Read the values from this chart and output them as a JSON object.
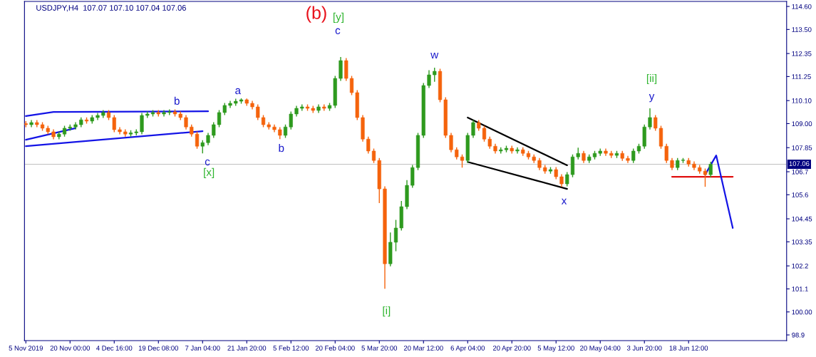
{
  "chart_data": {
    "type": "candlestick",
    "title": "USDJPY,H4  107.07 107.10 107.04 107.06",
    "categories": [
      "5 Nov 2019",
      null,
      null,
      null,
      null,
      null,
      null,
      null,
      "20 Nov 00:00",
      null,
      null,
      null,
      null,
      null,
      null,
      null,
      "4 Dec 16:00",
      null,
      null,
      null,
      null,
      null,
      null,
      null,
      "19 Dec 08:00",
      null,
      null,
      null,
      null,
      null,
      null,
      null,
      "7 Jan 04:00",
      null,
      null,
      null,
      null,
      null,
      null,
      null,
      "21 Jan 20:00",
      null,
      null,
      null,
      null,
      null,
      null,
      null,
      "5 Feb 12:00",
      null,
      null,
      null,
      null,
      null,
      null,
      null,
      "20 Feb 04:00",
      null,
      null,
      null,
      null,
      null,
      null,
      null,
      "5 Mar 20:00",
      null,
      null,
      null,
      null,
      null,
      null,
      null,
      "20 Mar 12:00",
      null,
      null,
      null,
      null,
      null,
      null,
      null,
      "6 Apr 04:00",
      null,
      null,
      null,
      null,
      null,
      null,
      null,
      "20 Apr 20:00",
      null,
      null,
      null,
      null,
      null,
      null,
      null,
      "5 May 12:00",
      null,
      null,
      null,
      null,
      null,
      null,
      null,
      "20 May 04:00",
      null,
      null,
      null,
      null,
      null,
      null,
      null,
      "3 Jun 20:00",
      null,
      null,
      null,
      null,
      null,
      null,
      null,
      "18 Jun 12:00",
      null,
      null,
      null,
      null,
      null,
      null,
      null,
      null,
      null,
      null,
      null,
      null,
      null,
      null,
      null,
      null,
      null
    ],
    "ohlc": [
      [
        109.0,
        109.12,
        108.83,
        108.95
      ],
      [
        108.95,
        109.17,
        108.83,
        109.05
      ],
      [
        109.05,
        109.17,
        108.83,
        108.95
      ],
      [
        108.95,
        109.07,
        108.66,
        108.78
      ],
      [
        108.78,
        108.9,
        108.49,
        108.61
      ],
      [
        108.61,
        108.73,
        108.25,
        108.37
      ],
      [
        108.37,
        108.62,
        108.25,
        108.5
      ],
      [
        108.5,
        108.9,
        108.38,
        108.78
      ],
      [
        108.78,
        108.96,
        108.66,
        108.84
      ],
      [
        108.84,
        109.07,
        108.72,
        108.95
      ],
      [
        108.95,
        109.3,
        108.83,
        109.18
      ],
      [
        109.18,
        109.3,
        109.0,
        109.12
      ],
      [
        109.12,
        109.41,
        109.0,
        109.29
      ],
      [
        109.29,
        109.51,
        109.17,
        109.39
      ],
      [
        109.39,
        109.65,
        109.27,
        109.53
      ],
      [
        109.53,
        109.65,
        109.17,
        109.29
      ],
      [
        109.29,
        109.41,
        108.59,
        108.71
      ],
      [
        108.71,
        108.83,
        108.49,
        108.61
      ],
      [
        108.61,
        108.73,
        108.38,
        108.5
      ],
      [
        108.5,
        108.68,
        108.38,
        108.56
      ],
      [
        108.56,
        108.73,
        108.44,
        108.61
      ],
      [
        108.61,
        109.51,
        108.49,
        109.39
      ],
      [
        109.39,
        109.58,
        109.27,
        109.46
      ],
      [
        109.46,
        109.65,
        109.34,
        109.53
      ],
      [
        109.53,
        109.65,
        109.34,
        109.46
      ],
      [
        109.46,
        109.65,
        109.34,
        109.53
      ],
      [
        109.53,
        109.68,
        109.41,
        109.56
      ],
      [
        109.56,
        109.68,
        109.34,
        109.46
      ],
      [
        109.46,
        109.58,
        109.17,
        109.29
      ],
      [
        109.29,
        109.41,
        108.72,
        108.84
      ],
      [
        108.84,
        108.96,
        108.38,
        108.5
      ],
      [
        108.5,
        108.62,
        107.8,
        107.92
      ],
      [
        107.92,
        108.21,
        107.58,
        108.09
      ],
      [
        108.09,
        108.56,
        107.97,
        108.44
      ],
      [
        108.44,
        109.07,
        108.32,
        108.95
      ],
      [
        108.95,
        109.65,
        108.83,
        109.53
      ],
      [
        109.53,
        109.99,
        109.41,
        109.87
      ],
      [
        109.87,
        110.09,
        109.75,
        109.97
      ],
      [
        109.97,
        110.19,
        109.85,
        110.07
      ],
      [
        110.07,
        110.21,
        109.95,
        110.14
      ],
      [
        110.14,
        110.2,
        109.85,
        109.97
      ],
      [
        109.97,
        110.09,
        109.68,
        109.8
      ],
      [
        109.8,
        109.92,
        109.17,
        109.29
      ],
      [
        109.29,
        109.41,
        108.83,
        108.95
      ],
      [
        108.95,
        109.07,
        108.72,
        108.84
      ],
      [
        108.84,
        108.96,
        108.59,
        108.71
      ],
      [
        108.71,
        108.83,
        108.26,
        108.44
      ],
      [
        108.44,
        108.96,
        108.32,
        108.84
      ],
      [
        108.84,
        109.58,
        108.72,
        109.46
      ],
      [
        109.46,
        109.85,
        109.34,
        109.73
      ],
      [
        109.73,
        109.92,
        109.61,
        109.8
      ],
      [
        109.8,
        109.92,
        109.61,
        109.73
      ],
      [
        109.73,
        109.85,
        109.51,
        109.63
      ],
      [
        109.63,
        109.92,
        109.51,
        109.8
      ],
      [
        109.8,
        109.92,
        109.61,
        109.73
      ],
      [
        109.73,
        109.99,
        109.61,
        109.87
      ],
      [
        109.87,
        111.28,
        109.75,
        111.16
      ],
      [
        111.16,
        112.18,
        111.04,
        112.01
      ],
      [
        112.01,
        112.13,
        111.04,
        111.16
      ],
      [
        111.16,
        111.28,
        110.36,
        110.48
      ],
      [
        110.48,
        110.6,
        109.17,
        109.29
      ],
      [
        109.29,
        109.41,
        108.14,
        108.26
      ],
      [
        108.26,
        108.38,
        107.57,
        107.69
      ],
      [
        107.69,
        107.81,
        107.12,
        107.24
      ],
      [
        107.24,
        107.36,
        105.2,
        105.88
      ],
      [
        105.88,
        106.0,
        101.11,
        102.3
      ],
      [
        102.3,
        103.8,
        102.18,
        103.33
      ],
      [
        103.33,
        104.4,
        102.9,
        104.01
      ],
      [
        104.01,
        105.3,
        103.89,
        105.03
      ],
      [
        105.03,
        106.3,
        104.91,
        106.05
      ],
      [
        106.05,
        107.02,
        105.93,
        106.9
      ],
      [
        106.9,
        108.56,
        106.78,
        108.44
      ],
      [
        108.44,
        110.94,
        108.32,
        110.82
      ],
      [
        110.82,
        111.55,
        110.7,
        111.33
      ],
      [
        111.33,
        111.67,
        111.0,
        111.5
      ],
      [
        111.5,
        111.62,
        110.02,
        110.14
      ],
      [
        110.14,
        110.26,
        108.32,
        108.44
      ],
      [
        108.44,
        108.56,
        107.63,
        107.75
      ],
      [
        107.75,
        107.87,
        107.29,
        107.41
      ],
      [
        107.41,
        107.53,
        106.9,
        107.24
      ],
      [
        107.24,
        108.56,
        107.12,
        108.44
      ],
      [
        108.44,
        109.17,
        108.32,
        109.05
      ],
      [
        109.05,
        109.17,
        108.66,
        108.78
      ],
      [
        108.78,
        108.9,
        108.14,
        108.26
      ],
      [
        108.26,
        108.38,
        107.8,
        107.92
      ],
      [
        107.92,
        108.04,
        107.57,
        107.69
      ],
      [
        107.69,
        107.87,
        107.57,
        107.75
      ],
      [
        107.75,
        107.94,
        107.63,
        107.82
      ],
      [
        107.82,
        107.94,
        107.57,
        107.69
      ],
      [
        107.69,
        107.87,
        107.57,
        107.75
      ],
      [
        107.75,
        107.87,
        107.46,
        107.58
      ],
      [
        107.58,
        107.7,
        107.29,
        107.41
      ],
      [
        107.41,
        107.53,
        107.12,
        107.24
      ],
      [
        107.24,
        107.36,
        106.78,
        106.9
      ],
      [
        106.9,
        107.02,
        106.61,
        106.73
      ],
      [
        106.73,
        106.92,
        106.61,
        106.8
      ],
      [
        106.8,
        106.92,
        106.34,
        106.46
      ],
      [
        106.46,
        106.58,
        105.98,
        106.12
      ],
      [
        106.12,
        106.68,
        106.0,
        106.56
      ],
      [
        106.56,
        107.53,
        106.44,
        107.41
      ],
      [
        107.41,
        107.85,
        107.29,
        107.58
      ],
      [
        107.58,
        107.7,
        107.12,
        107.24
      ],
      [
        107.24,
        107.53,
        107.12,
        107.41
      ],
      [
        107.41,
        107.7,
        107.29,
        107.58
      ],
      [
        107.58,
        107.81,
        107.46,
        107.69
      ],
      [
        107.69,
        107.81,
        107.46,
        107.58
      ],
      [
        107.58,
        107.7,
        107.36,
        107.48
      ],
      [
        107.48,
        107.7,
        107.36,
        107.58
      ],
      [
        107.58,
        107.7,
        107.22,
        107.34
      ],
      [
        107.34,
        107.46,
        107.12,
        107.24
      ],
      [
        107.24,
        107.81,
        107.12,
        107.69
      ],
      [
        107.69,
        108.04,
        107.57,
        107.92
      ],
      [
        107.92,
        108.96,
        107.8,
        108.84
      ],
      [
        108.84,
        109.73,
        108.72,
        109.29
      ],
      [
        109.29,
        109.41,
        108.66,
        108.78
      ],
      [
        108.78,
        108.9,
        107.8,
        107.92
      ],
      [
        107.92,
        108.04,
        107.12,
        107.24
      ],
      [
        107.24,
        107.36,
        106.78,
        106.9
      ],
      [
        106.9,
        107.36,
        106.78,
        107.24
      ],
      [
        107.24,
        107.36,
        107.12,
        107.24
      ],
      [
        107.24,
        107.36,
        106.95,
        107.07
      ],
      [
        107.07,
        107.19,
        106.78,
        106.9
      ],
      [
        106.9,
        107.02,
        106.61,
        106.73
      ],
      [
        106.73,
        106.85,
        105.98,
        106.56
      ],
      [
        106.56,
        107.18,
        106.44,
        107.06
      ],
      null,
      null,
      null,
      null,
      null,
      null,
      null,
      null,
      null,
      null,
      null,
      null,
      null
    ],
    "colors": [
      "#f5630c",
      "#2e9a1e",
      "#f5630c",
      "#f5630c",
      "#f5630c",
      "#f5630c",
      "#2e9a1e",
      "#2e9a1e",
      "#2e9a1e",
      "#2e9a1e",
      "#2e9a1e",
      "#f5630c",
      "#2e9a1e",
      "#2e9a1e",
      "#2e9a1e",
      "#f5630c",
      "#f5630c",
      "#f5630c",
      "#f5630c",
      "#2e9a1e",
      "#2e9a1e",
      "#2e9a1e",
      "#2e9a1e",
      "#2e9a1e",
      "#f5630c",
      "#2e9a1e",
      "#2e9a1e",
      "#f5630c",
      "#f5630c",
      "#f5630c",
      "#f5630c",
      "#f5630c",
      "#2e9a1e",
      "#2e9a1e",
      "#2e9a1e",
      "#2e9a1e",
      "#2e9a1e",
      "#2e9a1e",
      "#2e9a1e",
      "#2e9a1e",
      "#f5630c",
      "#f5630c",
      "#f5630c",
      "#f5630c",
      "#f5630c",
      "#f5630c",
      "#f5630c",
      "#2e9a1e",
      "#2e9a1e",
      "#2e9a1e",
      "#2e9a1e",
      "#f5630c",
      "#f5630c",
      "#2e9a1e",
      "#f5630c",
      "#2e9a1e",
      "#2e9a1e",
      "#2e9a1e",
      "#f5630c",
      "#f5630c",
      "#f5630c",
      "#f5630c",
      "#f5630c",
      "#f5630c",
      "#f5630c",
      "#f5630c",
      "#2e9a1e",
      "#2e9a1e",
      "#2e9a1e",
      "#2e9a1e",
      "#2e9a1e",
      "#2e9a1e",
      "#2e9a1e",
      "#2e9a1e",
      "#2e9a1e",
      "#f5630c",
      "#f5630c",
      "#f5630c",
      "#f5630c",
      "#f5630c",
      "#2e9a1e",
      "#2e9a1e",
      "#f5630c",
      "#f5630c",
      "#f5630c",
      "#f5630c",
      "#2e9a1e",
      "#2e9a1e",
      "#f5630c",
      "#2e9a1e",
      "#f5630c",
      "#f5630c",
      "#f5630c",
      "#f5630c",
      "#f5630c",
      "#2e9a1e",
      "#f5630c",
      "#f5630c",
      "#2e9a1e",
      "#2e9a1e",
      "#2e9a1e",
      "#f5630c",
      "#2e9a1e",
      "#2e9a1e",
      "#2e9a1e",
      "#f5630c",
      "#f5630c",
      "#2e9a1e",
      "#f5630c",
      "#f5630c",
      "#2e9a1e",
      "#2e9a1e",
      "#2e9a1e",
      "#2e9a1e",
      "#f5630c",
      "#f5630c",
      "#f5630c",
      "#f5630c",
      "#2e9a1e",
      "#2e9a1e",
      "#f5630c",
      "#f5630c",
      "#f5630c",
      "#f5630c",
      "#2e9a1e",
      null,
      null,
      null,
      null,
      null,
      null,
      null,
      null,
      null,
      null,
      null,
      null,
      null
    ],
    "ylim": [
      98.63,
      114.84
    ],
    "yticks": [
      98.9,
      {
        "value": 100.0,
        "label": "100.00"
      },
      101.1,
      102.2,
      103.35,
      104.45,
      105.6,
      106.7,
      107.85,
      {
        "value": 109.0,
        "label": "109.00"
      },
      {
        "value": 110.1,
        "label": "110.10"
      },
      111.25,
      112.35,
      {
        "value": 113.5,
        "label": "113.50"
      },
      {
        "value": 114.6,
        "label": "114.60"
      }
    ],
    "ref_lines": [
      {
        "axis": "y",
        "value": 107.06,
        "label": "107.06",
        "color": "#c0c0c0"
      }
    ],
    "annotations": [
      "b",
      "c",
      "[x]",
      "a",
      "b",
      "(b)",
      "c",
      "[y]",
      "[i]",
      "w",
      "x",
      "[ii]",
      "y"
    ],
    "series": [
      {
        "type": "line",
        "color": "#1414e6",
        "values": [
          109.36,
          null,
          null,
          null,
          null,
          109.56,
          null,
          null,
          null,
          null,
          null,
          null,
          null,
          null,
          null,
          null,
          null,
          null,
          null,
          null,
          null,
          null,
          null,
          null,
          null,
          null,
          null,
          null,
          null,
          null,
          null,
          null,
          null,
          109.59,
          null,
          null,
          null,
          null,
          null,
          null,
          null,
          null,
          null,
          null,
          null,
          null,
          null,
          null,
          null,
          null,
          null,
          null,
          null,
          null,
          null,
          null,
          null,
          null,
          null,
          null,
          null,
          null,
          null,
          null,
          null,
          null,
          null,
          null,
          null,
          null,
          null,
          null,
          null,
          null,
          null,
          null,
          null,
          null,
          null,
          null,
          null,
          null,
          null,
          null,
          null,
          null,
          null,
          null,
          null,
          null,
          null,
          null,
          null,
          null,
          null,
          null,
          null,
          null,
          null,
          null,
          null,
          null,
          null,
          null,
          null,
          null,
          null,
          null,
          null,
          null,
          null,
          null,
          null,
          null,
          null,
          null,
          null,
          null,
          null,
          null,
          null,
          null,
          null,
          null,
          null,
          null,
          null,
          null,
          null,
          null,
          null,
          null,
          null,
          null,
          null,
          null,
          null,
          null
        ]
      },
      {
        "type": "line",
        "color": "#1414e6",
        "values": [
          107.92,
          null,
          null,
          null,
          null,
          null,
          null,
          null,
          null,
          null,
          null,
          null,
          null,
          null,
          null,
          null,
          null,
          null,
          null,
          null,
          null,
          null,
          null,
          null,
          null,
          null,
          null,
          null,
          null,
          null,
          null,
          null,
          108.64,
          null,
          null,
          null,
          null,
          null,
          null,
          null,
          null,
          null,
          null,
          null,
          null,
          null,
          null,
          null,
          null,
          null,
          null,
          null,
          null,
          null,
          null,
          null,
          null,
          null,
          null,
          null,
          null,
          null,
          null,
          null,
          null,
          null,
          null,
          null,
          null,
          null,
          null,
          null,
          null,
          null,
          null,
          null,
          null,
          null,
          null,
          null,
          null,
          null,
          null,
          null,
          null,
          null,
          null,
          null,
          null,
          null,
          null,
          null,
          null,
          null,
          null,
          null,
          null,
          null,
          null,
          null,
          null,
          null,
          null,
          null,
          null,
          null,
          null,
          null,
          null,
          null,
          null,
          null,
          null,
          null,
          null,
          null,
          null,
          null,
          null,
          null,
          null,
          null,
          null,
          null,
          null,
          null,
          null,
          null,
          null,
          null,
          null,
          null,
          null,
          null,
          null,
          null,
          null,
          null
        ]
      },
      {
        "type": "line",
        "color": "#1414e6",
        "values": [
          108.23,
          null,
          null,
          null,
          null,
          null,
          null,
          null,
          null,
          108.78,
          null,
          null,
          null,
          null,
          null,
          null,
          null,
          null,
          null,
          null,
          null,
          null,
          null,
          null,
          null,
          null,
          null,
          null,
          null,
          null,
          null,
          null,
          null,
          null,
          null,
          null,
          null,
          null,
          null,
          null,
          null,
          null,
          null,
          null,
          null,
          null,
          null,
          null,
          null,
          null,
          null,
          null,
          null,
          null,
          null,
          null,
          null,
          null,
          null,
          null,
          null,
          null,
          null,
          null,
          null,
          null,
          null,
          null,
          null,
          null,
          null,
          null,
          null,
          null,
          null,
          null,
          null,
          null,
          null,
          null,
          null,
          null,
          null,
          null,
          null,
          null,
          null,
          null,
          null,
          null,
          null,
          null,
          null,
          null,
          null,
          null,
          null,
          null,
          null,
          null,
          null,
          null,
          null,
          null,
          null,
          null,
          null,
          null,
          null,
          null,
          null,
          null,
          null,
          null,
          null,
          null,
          null,
          null,
          null,
          null,
          null,
          null,
          null,
          null,
          null,
          null,
          null,
          null,
          null,
          null,
          null,
          null,
          null,
          null,
          null,
          null,
          null,
          null
        ]
      },
      {
        "type": "line",
        "color": "#000000",
        "values": [
          null,
          null,
          null,
          null,
          null,
          null,
          null,
          null,
          null,
          null,
          null,
          null,
          null,
          null,
          null,
          null,
          null,
          null,
          null,
          null,
          null,
          null,
          null,
          null,
          null,
          null,
          null,
          null,
          null,
          null,
          null,
          null,
          null,
          null,
          null,
          null,
          null,
          null,
          null,
          null,
          null,
          null,
          null,
          null,
          null,
          null,
          null,
          null,
          null,
          null,
          null,
          null,
          null,
          null,
          null,
          null,
          null,
          null,
          null,
          null,
          null,
          null,
          null,
          null,
          null,
          null,
          null,
          null,
          null,
          null,
          null,
          null,
          null,
          null,
          null,
          null,
          null,
          null,
          null,
          null,
          109.29,
          null,
          null,
          null,
          null,
          null,
          null,
          null,
          null,
          null,
          null,
          null,
          null,
          null,
          null,
          null,
          null,
          null,
          107.01,
          null,
          null,
          null,
          null,
          null,
          null,
          null,
          null,
          null,
          null,
          null,
          null,
          null,
          null,
          null,
          null,
          null,
          null,
          null,
          null,
          null,
          null,
          null,
          null,
          null,
          null,
          null,
          null,
          null,
          null,
          null,
          null,
          null,
          null,
          null,
          null,
          null,
          null,
          null
        ]
      },
      {
        "type": "line",
        "color": "#000000",
        "values": [
          null,
          null,
          null,
          null,
          null,
          null,
          null,
          null,
          null,
          null,
          null,
          null,
          null,
          null,
          null,
          null,
          null,
          null,
          null,
          null,
          null,
          null,
          null,
          null,
          null,
          null,
          null,
          null,
          null,
          null,
          null,
          null,
          null,
          null,
          null,
          null,
          null,
          null,
          null,
          null,
          null,
          null,
          null,
          null,
          null,
          null,
          null,
          null,
          null,
          null,
          null,
          null,
          null,
          null,
          null,
          null,
          null,
          null,
          null,
          null,
          null,
          null,
          null,
          null,
          null,
          null,
          null,
          null,
          null,
          null,
          null,
          null,
          null,
          null,
          null,
          null,
          null,
          null,
          null,
          null,
          107.17,
          null,
          null,
          null,
          null,
          null,
          null,
          null,
          null,
          null,
          null,
          null,
          null,
          null,
          null,
          null,
          null,
          null,
          105.88,
          null,
          null,
          null,
          null,
          null,
          null,
          null,
          null,
          null,
          null,
          null,
          null,
          null,
          null,
          null,
          null,
          null,
          null,
          null,
          null,
          null,
          null,
          null,
          null,
          null,
          null,
          null,
          null,
          null,
          null,
          null,
          null,
          null,
          null,
          null,
          null,
          null,
          null,
          null
        ]
      },
      {
        "type": "line",
        "color": "#e01010",
        "values": [
          null,
          null,
          null,
          null,
          null,
          null,
          null,
          null,
          null,
          null,
          null,
          null,
          null,
          null,
          null,
          null,
          null,
          null,
          null,
          null,
          null,
          null,
          null,
          null,
          null,
          null,
          null,
          null,
          null,
          null,
          null,
          null,
          null,
          null,
          null,
          null,
          null,
          null,
          null,
          null,
          null,
          null,
          null,
          null,
          null,
          null,
          null,
          null,
          null,
          null,
          null,
          null,
          null,
          null,
          null,
          null,
          null,
          null,
          null,
          null,
          null,
          null,
          null,
          null,
          null,
          null,
          null,
          null,
          null,
          null,
          null,
          null,
          null,
          null,
          null,
          null,
          null,
          null,
          null,
          null,
          null,
          null,
          null,
          null,
          null,
          null,
          null,
          null,
          null,
          null,
          null,
          null,
          null,
          null,
          null,
          null,
          null,
          null,
          null,
          null,
          null,
          null,
          null,
          null,
          null,
          null,
          null,
          null,
          null,
          null,
          null,
          null,
          null,
          null,
          null,
          null,
          null,
          106.46,
          null,
          null,
          null,
          null,
          null,
          null,
          null,
          null,
          null,
          null,
          106.46,
          null,
          null,
          null,
          null,
          null,
          null,
          null,
          null,
          null
        ]
      },
      {
        "type": "line",
        "color": "#1414e6",
        "values": [
          null,
          null,
          null,
          null,
          null,
          null,
          null,
          null,
          null,
          null,
          null,
          null,
          null,
          null,
          null,
          null,
          null,
          null,
          null,
          null,
          null,
          null,
          null,
          null,
          null,
          null,
          null,
          null,
          null,
          null,
          null,
          null,
          null,
          null,
          null,
          null,
          null,
          null,
          null,
          null,
          null,
          null,
          null,
          null,
          null,
          null,
          null,
          null,
          null,
          null,
          null,
          null,
          null,
          null,
          null,
          null,
          null,
          null,
          null,
          null,
          null,
          null,
          null,
          null,
          null,
          null,
          null,
          null,
          null,
          null,
          null,
          null,
          null,
          null,
          null,
          null,
          null,
          null,
          null,
          null,
          null,
          null,
          null,
          null,
          null,
          null,
          null,
          null,
          null,
          null,
          null,
          null,
          null,
          null,
          null,
          null,
          null,
          null,
          null,
          null,
          null,
          null,
          null,
          null,
          null,
          null,
          null,
          null,
          null,
          null,
          null,
          null,
          null,
          null,
          null,
          null,
          null,
          null,
          null,
          null,
          null,
          null,
          null,
          106.56,
          null,
          107.48,
          null,
          null,
          104.01,
          null,
          null,
          null,
          null,
          null,
          null,
          null,
          null,
          null
        ]
      }
    ]
  }
}
